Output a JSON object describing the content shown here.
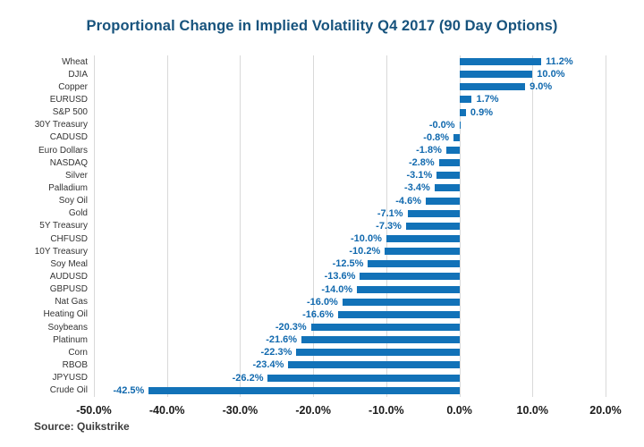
{
  "title": "Proportional Change in Implied Volatility Q4 2017 (90 Day Options)",
  "source": "Source: Quikstrike",
  "colors": {
    "bar": "#1272b8",
    "value_label": "#1169ae",
    "title": "#17537d",
    "gridline": "#d9d9d9",
    "axis_text": "#1a1a1a",
    "category_text": "#333333",
    "source_text": "#3d3d3d",
    "background": "#ffffff"
  },
  "chart_data": {
    "type": "bar",
    "orientation": "horizontal",
    "title": "Proportional Change in Implied Volatility Q4 2017 (90 Day Options)",
    "xlabel": "",
    "ylabel": "",
    "legend": "none",
    "grid": "vertical",
    "xlim": [
      -50,
      20
    ],
    "categories": [
      "Wheat",
      "DJIA",
      "Copper",
      "EURUSD",
      "S&P 500",
      "30Y Treasury",
      "CADUSD",
      "Euro Dollars",
      "NASDAQ",
      "Silver",
      "Palladium",
      "Soy Oil",
      "Gold",
      "5Y Treasury",
      "CHFUSD",
      "10Y Treasury",
      "Soy Meal",
      "AUDUSD",
      "GBPUSD",
      "Nat Gas",
      "Heating Oil",
      "Soybeans",
      "Platinum",
      "Corn",
      "RBOB",
      "JPYUSD",
      "Crude Oil"
    ],
    "values": [
      11.2,
      10.0,
      9.0,
      1.7,
      0.9,
      -0.0,
      -0.8,
      -1.8,
      -2.8,
      -3.1,
      -3.4,
      -4.6,
      -7.1,
      -7.3,
      -10.0,
      -10.2,
      -12.5,
      -13.6,
      -14.0,
      -16.0,
      -16.6,
      -20.3,
      -21.6,
      -22.3,
      -23.4,
      -26.2,
      -42.5
    ],
    "value_labels": [
      "11.2%",
      "10.0%",
      "9.0%",
      "1.7%",
      "0.9%",
      "-0.0%",
      "-0.8%",
      "-1.8%",
      "-2.8%",
      "-3.1%",
      "-3.4%",
      "-4.6%",
      "-7.1%",
      "-7.3%",
      "-10.0%",
      "-10.2%",
      "-12.5%",
      "-13.6%",
      "-14.0%",
      "-16.0%",
      "-16.6%",
      "-20.3%",
      "-21.6%",
      "-22.3%",
      "-23.4%",
      "-26.2%",
      "-42.5%"
    ],
    "x_ticks": {
      "values": [
        -50,
        -40,
        -30,
        -20,
        -10,
        0,
        10,
        20
      ],
      "labels": [
        "-50.0%",
        "-40.0%",
        "-30.0%",
        "-20.0%",
        "-10.0%",
        "0.0%",
        "10.0%",
        "20.0%"
      ]
    }
  }
}
